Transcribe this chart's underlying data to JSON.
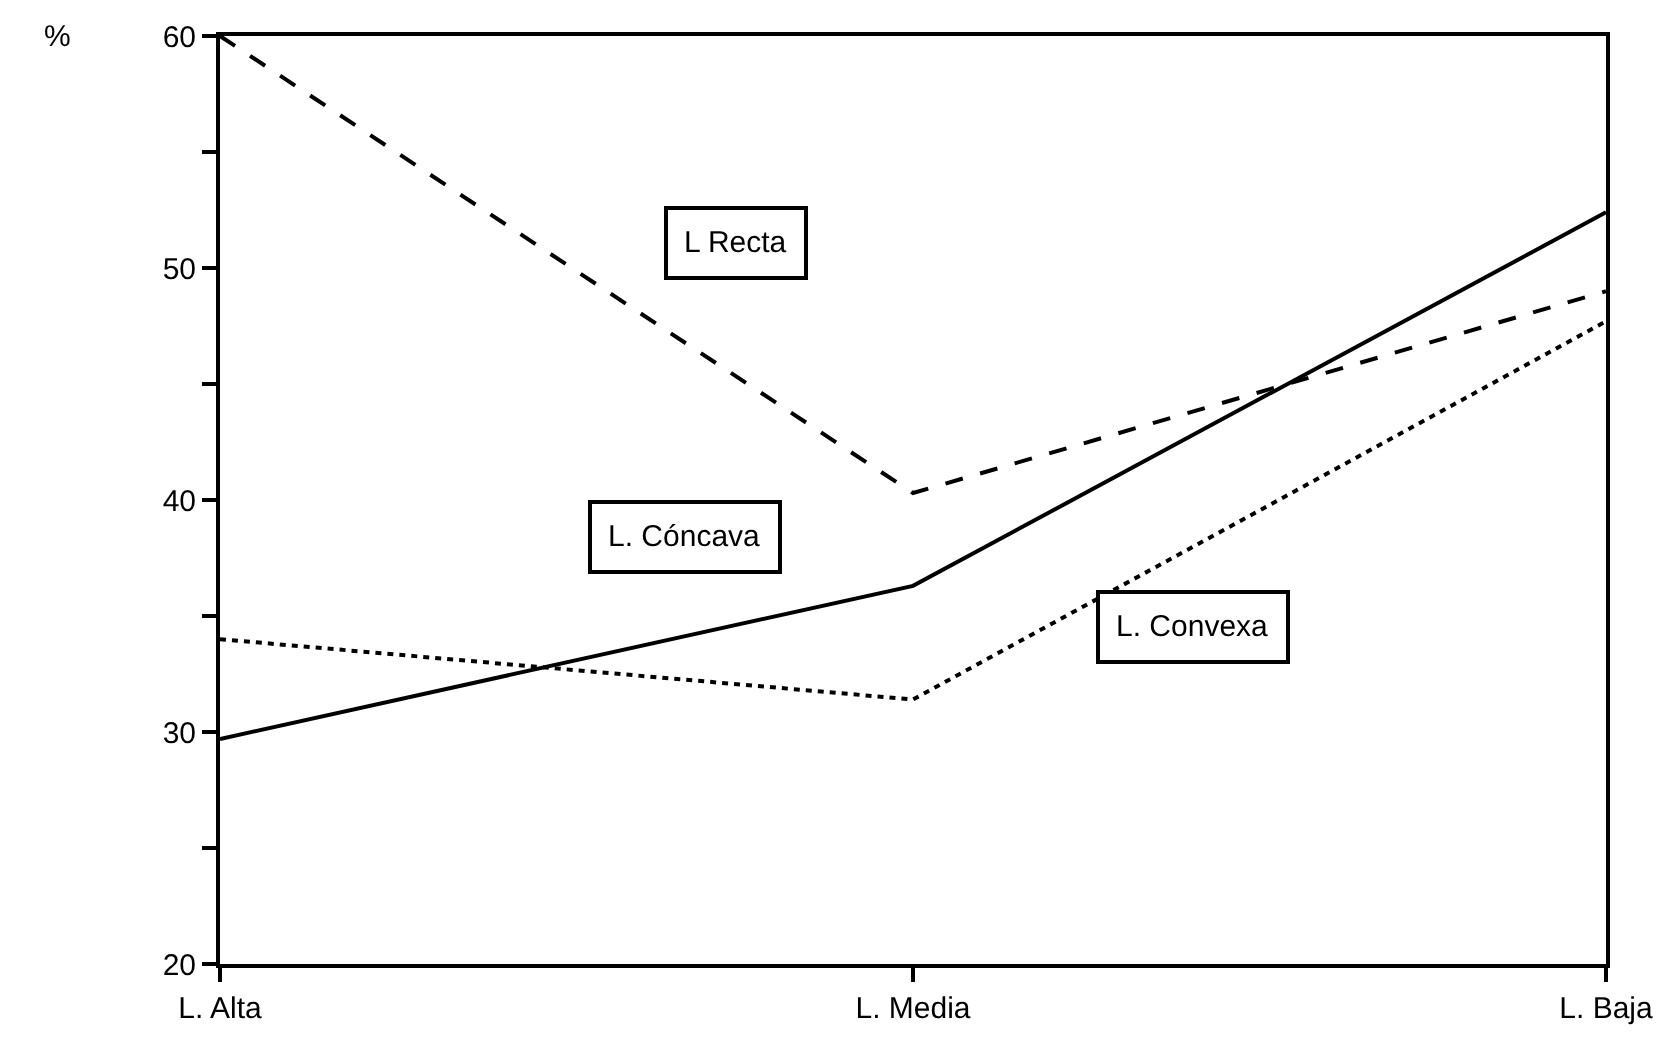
{
  "chart_data": {
    "type": "line",
    "ylabel": "%",
    "categories": [
      "L. Alta",
      "L. Media",
      "L. Baja"
    ],
    "series": [
      {
        "name": "L Recta",
        "color": "#000000",
        "line_style": "dashed",
        "values": [
          60,
          40.3,
          49.0
        ]
      },
      {
        "name": "L. Cóncava",
        "color": "#000000",
        "line_style": "solid",
        "values": [
          29.7,
          36.3,
          52.4
        ]
      },
      {
        "name": "L. Convexa",
        "color": "#000000",
        "line_style": "dotted",
        "values": [
          34.0,
          31.4,
          47.7
        ]
      }
    ],
    "ylim": [
      20,
      60
    ],
    "yticks": [
      20,
      {
        "value": 25,
        "label": null
      },
      30,
      {
        "value": 35,
        "label": null
      },
      40,
      {
        "value": 45,
        "label": null
      },
      50,
      {
        "value": 55,
        "label": null
      },
      60
    ],
    "grid": false,
    "legend": false,
    "marker": "none"
  }
}
